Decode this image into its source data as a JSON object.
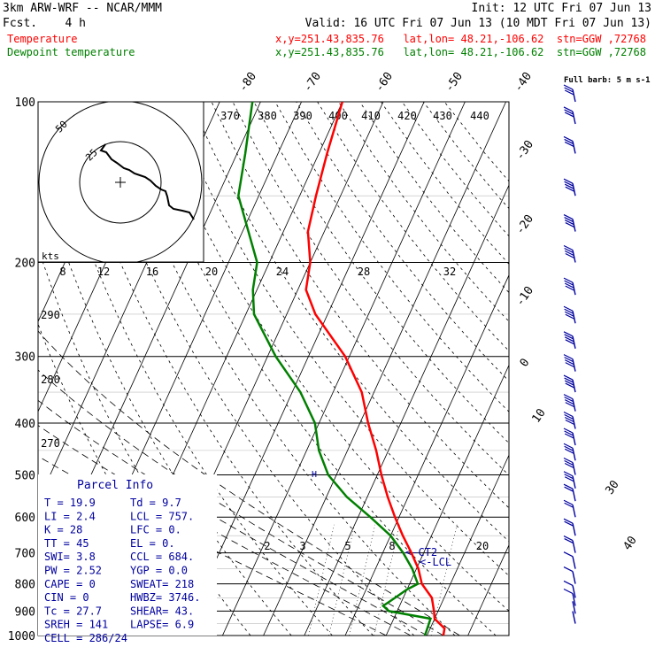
{
  "header": {
    "model": "3km ARW-WRF -- NCAR/MMM",
    "init": "Init: 12 UTC Fri 07 Jun 13",
    "fcst": "Fcst.    4 h",
    "valid": "Valid: 16 UTC Fri 07 Jun 13 (10 MDT Fri 07 Jun 13)",
    "temp_label": "Temperature",
    "temp_info": "x,y=251.43,835.76   lat,lon= 48.21,-106.62  stn=GGW ,72768",
    "dew_label": "Dewpoint temperature",
    "dew_info": "x,y=251.43,835.76   lat,lon= 48.21,-106.62  stn=GGW ,72768"
  },
  "colors": {
    "temp": "#ff0000",
    "dew": "#008000",
    "wind": "#0000a0",
    "axes": "#000000"
  },
  "chart_data": {
    "type": "line",
    "x_axis": "temperature (C), skewed",
    "y_axis": "pressure (hPa), log scale",
    "pressure_ticks": [
      "100",
      "200",
      "300",
      "400",
      "500",
      "600",
      "700",
      "800",
      "900",
      "1000"
    ],
    "isotherm_labels": [
      "-80",
      "-70",
      "-60",
      "-50",
      "-40",
      "-30",
      "-20",
      "-10",
      "0",
      "10",
      "30",
      "40"
    ],
    "theta_labels": [
      "370",
      "380",
      "390",
      "400",
      "410",
      "420",
      "430",
      "440"
    ],
    "theta_side_labels": [
      "290",
      "280",
      "270"
    ],
    "mixing_ratio_labels": [
      "2",
      "3",
      "5",
      "8",
      "20"
    ],
    "level_markers": [
      {
        "label": "<-CT2",
        "pressure": 720
      },
      {
        "label": "<-LCL",
        "pressure": 757
      }
    ],
    "series": [
      {
        "name": "Temperature",
        "points": [
          [
            1000,
            24
          ],
          [
            970,
            23.5
          ],
          [
            930,
            20
          ],
          [
            900,
            19
          ],
          [
            850,
            17
          ],
          [
            800,
            13
          ],
          [
            750,
            10.5
          ],
          [
            700,
            7
          ],
          [
            650,
            3
          ],
          [
            600,
            -1
          ],
          [
            550,
            -5
          ],
          [
            500,
            -9
          ],
          [
            450,
            -13
          ],
          [
            400,
            -18
          ],
          [
            350,
            -23
          ],
          [
            300,
            -31
          ],
          [
            250,
            -43
          ],
          [
            225,
            -48
          ],
          [
            200,
            -50
          ],
          [
            175,
            -54
          ],
          [
            150,
            -56
          ],
          [
            125,
            -58
          ],
          [
            100,
            -60
          ]
        ]
      },
      {
        "name": "Dewpoint temperature",
        "points": [
          [
            1000,
            19.5
          ],
          [
            930,
            19
          ],
          [
            900,
            8
          ],
          [
            880,
            6
          ],
          [
            850,
            8
          ],
          [
            820,
            10
          ],
          [
            800,
            12
          ],
          [
            750,
            9
          ],
          [
            700,
            5
          ],
          [
            650,
            0
          ],
          [
            600,
            -7
          ],
          [
            550,
            -15
          ],
          [
            500,
            -22
          ],
          [
            450,
            -27
          ],
          [
            400,
            -31
          ],
          [
            350,
            -38
          ],
          [
            300,
            -48
          ],
          [
            250,
            -58
          ],
          [
            225,
            -61
          ],
          [
            200,
            -63
          ],
          [
            150,
            -75
          ],
          [
            125,
            -78
          ],
          [
            100,
            -82
          ]
        ]
      }
    ]
  },
  "hodograph": {
    "ring_labels": [
      "25",
      "50"
    ],
    "speed_axis_label": "kts",
    "speed_ticks": [
      "8",
      "12",
      "16",
      "20",
      "24",
      "28",
      "32"
    ]
  },
  "wind_barb_legend": "Full barb: 5 m s-1",
  "wind_barbs": [
    {
      "p": 950,
      "dir": 230,
      "spd": 2
    },
    {
      "p": 910,
      "dir": 250,
      "spd": 3
    },
    {
      "p": 880,
      "dir": 240,
      "spd": 4
    },
    {
      "p": 850,
      "dir": 240,
      "spd": 5
    },
    {
      "p": 800,
      "dir": 230,
      "spd": 6
    },
    {
      "p": 750,
      "dir": 230,
      "spd": 7
    },
    {
      "p": 700,
      "dir": 230,
      "spd": 9
    },
    {
      "p": 650,
      "dir": 230,
      "spd": 10
    },
    {
      "p": 600,
      "dir": 235,
      "spd": 10
    },
    {
      "p": 560,
      "dir": 240,
      "spd": 11
    },
    {
      "p": 530,
      "dir": 240,
      "spd": 12
    },
    {
      "p": 500,
      "dir": 240,
      "spd": 13
    },
    {
      "p": 470,
      "dir": 240,
      "spd": 14
    },
    {
      "p": 440,
      "dir": 240,
      "spd": 15
    },
    {
      "p": 410,
      "dir": 240,
      "spd": 16
    },
    {
      "p": 380,
      "dir": 240,
      "spd": 17
    },
    {
      "p": 350,
      "dir": 240,
      "spd": 18
    },
    {
      "p": 320,
      "dir": 240,
      "spd": 18
    },
    {
      "p": 290,
      "dir": 240,
      "spd": 19
    },
    {
      "p": 260,
      "dir": 240,
      "spd": 20
    },
    {
      "p": 230,
      "dir": 240,
      "spd": 20
    },
    {
      "p": 200,
      "dir": 240,
      "spd": 18
    },
    {
      "p": 175,
      "dir": 240,
      "spd": 17
    },
    {
      "p": 150,
      "dir": 240,
      "spd": 16
    },
    {
      "p": 125,
      "dir": 240,
      "spd": 15
    },
    {
      "p": 110,
      "dir": 240,
      "spd": 14
    },
    {
      "p": 100,
      "dir": 240,
      "spd": 13
    }
  ],
  "parcel_info": {
    "title": "Parcel Info",
    "rows": [
      [
        "T  =   19.9",
        "Td =   9.7"
      ],
      [
        "LI =    2.4",
        "LCL =  757."
      ],
      [
        "K  =     28",
        "LFC =    0."
      ],
      [
        "TT =     45",
        "EL  =    0."
      ],
      [
        "SWI=    3.8",
        "CCL =  684."
      ],
      [
        "PW =   2.52",
        "YGP =   0.0"
      ],
      [
        "CAPE =    0",
        "SWEAT=  218"
      ],
      [
        "CIN  =    0",
        "HWBZ= 3746."
      ],
      [
        "Tc =   27.7",
        "SHEAR=  43."
      ],
      [
        "SREH =  141",
        "LAPSE=  6.9"
      ],
      [
        "CELL = 286/24",
        ""
      ]
    ]
  }
}
